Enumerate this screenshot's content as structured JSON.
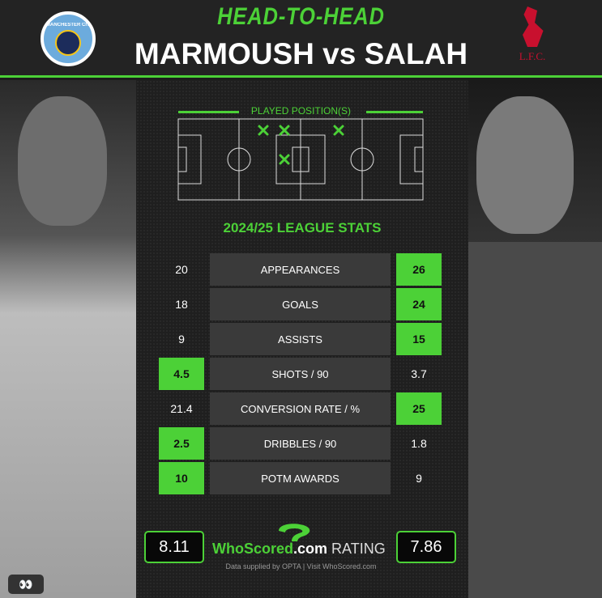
{
  "header": {
    "kicker": "HEAD-TO-HEAD",
    "title": "MARMOUSH vs SALAH",
    "left_crest_text": "MANCHESTER CITY",
    "right_crest_text": "L.F.C."
  },
  "positions": {
    "label": "PLAYED POSITION(S)"
  },
  "stats": {
    "section_title": "2024/25 LEAGUE STATS",
    "rows": [
      {
        "label": "APPEARANCES",
        "left": "20",
        "right": "26",
        "winner": "right"
      },
      {
        "label": "GOALS",
        "left": "18",
        "right": "24",
        "winner": "right"
      },
      {
        "label": "ASSISTS",
        "left": "9",
        "right": "15",
        "winner": "right"
      },
      {
        "label": "SHOTS / 90",
        "left": "4.5",
        "right": "3.7",
        "winner": "left"
      },
      {
        "label": "CONVERSION RATE / %",
        "left": "21.4",
        "right": "25",
        "winner": "right"
      },
      {
        "label": "DRIBBLES / 90",
        "left": "2.5",
        "right": "1.8",
        "winner": "left"
      },
      {
        "label": "POTM AWARDS",
        "left": "10",
        "right": "9",
        "winner": "left"
      }
    ]
  },
  "rating": {
    "left": "8.11",
    "right": "7.86",
    "brand": "WhoScored",
    "brand_suffix": ".com",
    "label": "RATING",
    "credit": "Data supplied by OPTA | Visit WhoScored.com"
  },
  "colors": {
    "accent": "#4cd137",
    "background": "#1f1f1f"
  },
  "icons": {
    "eyes": "eyes-icon"
  }
}
